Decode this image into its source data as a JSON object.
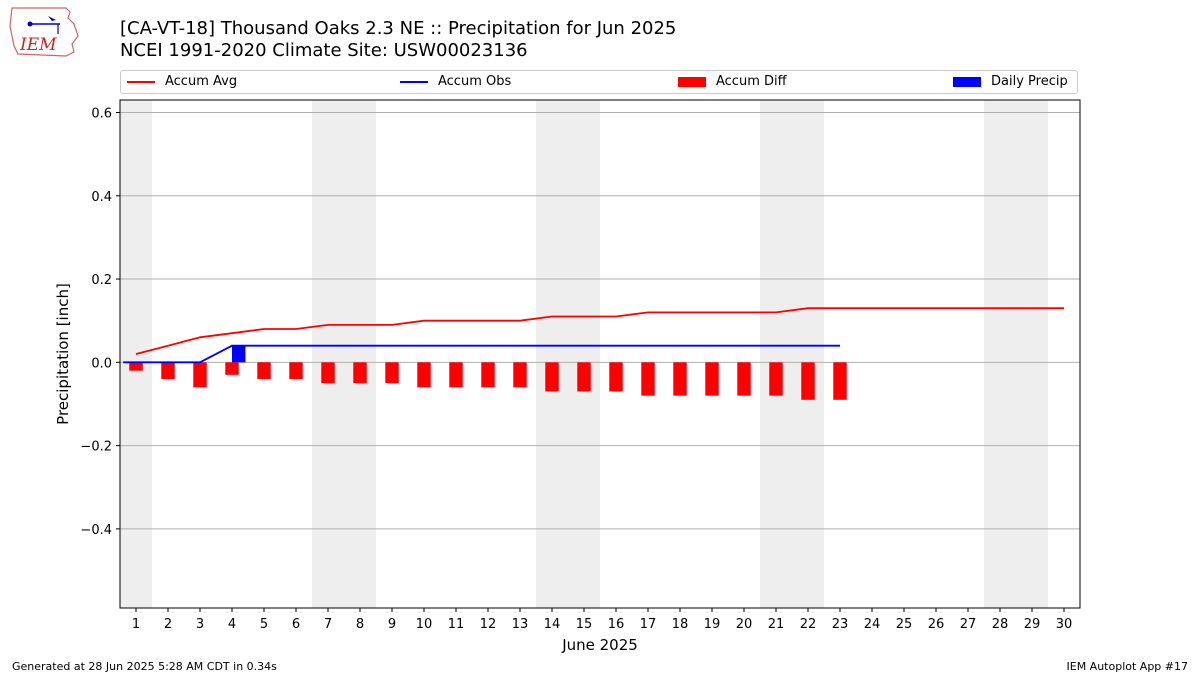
{
  "header": {
    "title_line1": "[CA-VT-18] Thousand Oaks 2.3 NE :: Precipitation for Jun 2025",
    "title_line2": "NCEI 1991-2020 Climate Site: USW00023136"
  },
  "logo": {
    "text": "IEM",
    "icon": "iowa-state-outline-logo"
  },
  "footer": {
    "left": "Generated at 28 Jun 2025 5:28 AM CDT in 0.34s",
    "right": "IEM Autoplot App #17"
  },
  "legend": [
    {
      "label": "Accum Avg",
      "kind": "line",
      "color": "#ff0000"
    },
    {
      "label": "Accum Obs",
      "kind": "line",
      "color": "#0000ff"
    },
    {
      "label": "Accum Diff",
      "kind": "bar",
      "color": "#ff0000"
    },
    {
      "label": "Daily Precip",
      "kind": "bar",
      "color": "#0000ff"
    }
  ],
  "chart_data": {
    "type": "bar",
    "xlabel": "June 2025",
    "ylabel": "Precipitation [inch]",
    "ylim": [
      -0.59,
      0.63
    ],
    "xlim": [
      0.5,
      30.5
    ],
    "yticks": [
      -0.4,
      -0.2,
      0.0,
      0.2,
      0.4,
      0.6
    ],
    "ytick_labels": [
      "−0.4",
      "−0.2",
      "0.0",
      "0.2",
      "0.4",
      "0.6"
    ],
    "x": [
      1,
      2,
      3,
      4,
      5,
      6,
      7,
      8,
      9,
      10,
      11,
      12,
      13,
      14,
      15,
      16,
      17,
      18,
      19,
      20,
      21,
      22,
      23,
      24,
      25,
      26,
      27,
      28,
      29,
      30
    ],
    "grid": "horizontal",
    "weekend_shading": [
      [
        0.5,
        1.5
      ],
      [
        6.5,
        8.5
      ],
      [
        13.5,
        15.5
      ],
      [
        20.5,
        22.5
      ],
      [
        27.5,
        29.5
      ]
    ],
    "weekend_color": "#eeeeee",
    "series": [
      {
        "name": "Accum Avg",
        "kind": "line",
        "color": "#ff0000",
        "x": [
          1,
          2,
          3,
          4,
          5,
          6,
          7,
          8,
          9,
          10,
          11,
          12,
          13,
          14,
          15,
          16,
          17,
          18,
          19,
          20,
          21,
          22,
          23,
          24,
          25,
          26,
          27,
          28,
          29,
          30
        ],
        "values": [
          0.02,
          0.04,
          0.06,
          0.07,
          0.08,
          0.08,
          0.09,
          0.09,
          0.09,
          0.1,
          0.1,
          0.1,
          0.1,
          0.11,
          0.11,
          0.11,
          0.12,
          0.12,
          0.12,
          0.12,
          0.12,
          0.13,
          0.13,
          0.13,
          0.13,
          0.13,
          0.13,
          0.13,
          0.13,
          0.13
        ]
      },
      {
        "name": "Accum Obs",
        "kind": "line",
        "color": "#0000ff",
        "x": [
          0.6,
          1,
          2,
          3,
          4,
          5,
          6,
          7,
          8,
          9,
          10,
          11,
          12,
          13,
          14,
          15,
          16,
          17,
          18,
          19,
          20,
          21,
          22,
          23
        ],
        "values": [
          0,
          0,
          0,
          0,
          0.04,
          0.04,
          0.04,
          0.04,
          0.04,
          0.04,
          0.04,
          0.04,
          0.04,
          0.04,
          0.04,
          0.04,
          0.04,
          0.04,
          0.04,
          0.04,
          0.04,
          0.04,
          0.04,
          0.04
        ]
      },
      {
        "name": "Accum Diff",
        "kind": "bar",
        "color": "#ff0000",
        "x": [
          1,
          2,
          3,
          4,
          5,
          6,
          7,
          8,
          9,
          10,
          11,
          12,
          13,
          14,
          15,
          16,
          17,
          18,
          19,
          20,
          21,
          22,
          23
        ],
        "values": [
          -0.02,
          -0.04,
          -0.06,
          -0.03,
          -0.04,
          -0.04,
          -0.05,
          -0.05,
          -0.05,
          -0.06,
          -0.06,
          -0.06,
          -0.06,
          -0.07,
          -0.07,
          -0.07,
          -0.08,
          -0.08,
          -0.08,
          -0.08,
          -0.08,
          -0.09,
          -0.09
        ]
      },
      {
        "name": "Daily Precip",
        "kind": "bar",
        "color": "#0000ff",
        "x": [
          4
        ],
        "values": [
          0.04
        ]
      }
    ]
  }
}
